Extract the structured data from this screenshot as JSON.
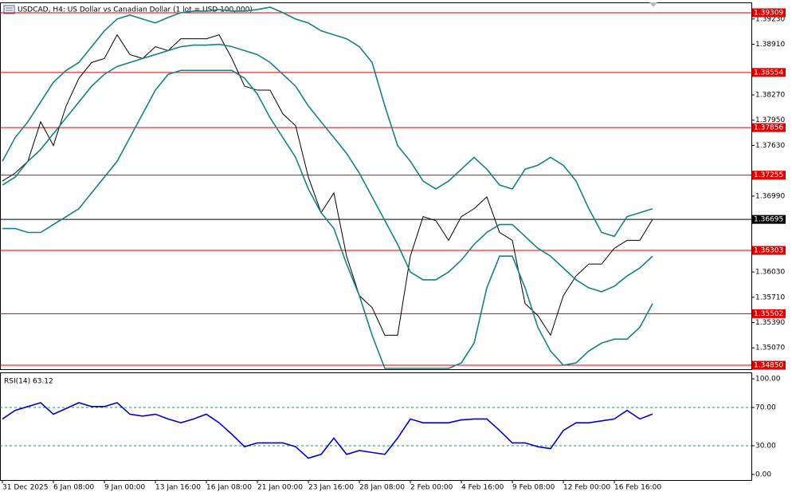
{
  "chart_data": [
    {
      "type": "line",
      "title": "USDCAD, H4:  US Dollar vs Canadian Dollar (1 lot = USD 100,000)",
      "ylim": [
        1.348,
        1.3943
      ],
      "yticks": [
        {
          "value": 1.3923,
          "label": "1.39230"
        },
        {
          "value": 1.3891,
          "label": "1.38910"
        },
        {
          "value": 1.3827,
          "label": "1.38270"
        },
        {
          "value": 1.3795,
          "label": "1.37950"
        },
        {
          "value": 1.3763,
          "label": "1.37630"
        },
        {
          "value": 1.3699,
          "label": "1.36990"
        },
        {
          "value": 1.3603,
          "label": "1.36030"
        },
        {
          "value": 1.3571,
          "label": "1.35710"
        },
        {
          "value": 1.3539,
          "label": "1.35390"
        },
        {
          "value": 1.3507,
          "label": "1.35070"
        }
      ],
      "levels": [
        1.39309,
        1.38554,
        1.37856,
        1.37255,
        1.36303,
        1.35502,
        {
          "value": 1.3485,
          "label": "1.34850"
        }
      ],
      "level_color": "#e00000",
      "current_price": 1.36695,
      "series": [
        {
          "color": "#000000",
          "values": [
            1.3718,
            1.3728,
            1.3743,
            1.3793,
            1.3763,
            1.3813,
            1.3848,
            1.3868,
            1.3873,
            1.3903,
            1.3878,
            1.3873,
            1.3888,
            1.3883,
            1.3898,
            1.3898,
            1.3898,
            1.3903,
            1.3873,
            1.3838,
            1.3833,
            1.3833,
            1.3803,
            1.3788,
            1.3723,
            1.3678,
            1.3703,
            1.3623,
            1.3573,
            1.3558,
            1.3523,
            1.3523,
            1.3623,
            1.3673,
            1.3668,
            1.3643,
            1.3673,
            1.3683,
            1.3698,
            1.3653,
            1.3643,
            1.3563,
            1.3548,
            1.3523,
            1.3573,
            1.3598,
            1.3613,
            1.3613,
            1.3633,
            1.3643,
            1.3643,
            1.36695
          ]
        },
        {
          "color": "#148282",
          "values": [
            1.3743,
            1.3773,
            1.3793,
            1.3818,
            1.3843,
            1.3858,
            1.3868,
            1.3888,
            1.3908,
            1.3923,
            1.3928,
            1.3923,
            1.3918,
            1.3925,
            1.3931,
            1.3933,
            1.3933,
            1.3935,
            1.3933,
            1.3933,
            1.3935,
            1.3938,
            1.3931,
            1.3923,
            1.3918,
            1.3908,
            1.3903,
            1.3898,
            1.3888,
            1.3868,
            1.3813,
            1.3763,
            1.3743,
            1.3718,
            1.3708,
            1.3718,
            1.3733,
            1.3748,
            1.3733,
            1.3713,
            1.3708,
            1.3733,
            1.3738,
            1.3748,
            1.3738,
            1.3718,
            1.3683,
            1.3653,
            1.3648,
            1.3673,
            1.3678,
            1.3683
          ]
        },
        {
          "color": "#148282",
          "values": [
            1.3713,
            1.3723,
            1.3743,
            1.3758,
            1.3778,
            1.3798,
            1.3818,
            1.3838,
            1.3853,
            1.3863,
            1.3868,
            1.3873,
            1.3878,
            1.3883,
            1.3888,
            1.389,
            1.389,
            1.3891,
            1.3888,
            1.3883,
            1.3878,
            1.3868,
            1.3853,
            1.3838,
            1.3813,
            1.3793,
            1.3773,
            1.3753,
            1.3728,
            1.3698,
            1.3668,
            1.3638,
            1.3603,
            1.3593,
            1.3593,
            1.3603,
            1.3618,
            1.3638,
            1.3653,
            1.3663,
            1.3663,
            1.3648,
            1.3633,
            1.3623,
            1.3608,
            1.3593,
            1.3583,
            1.3578,
            1.3585,
            1.3598,
            1.3608,
            1.3623
          ]
        },
        {
          "color": "#148282",
          "values": [
            1.3658,
            1.3658,
            1.3653,
            1.3653,
            1.3663,
            1.3673,
            1.3683,
            1.3703,
            1.3723,
            1.3743,
            1.3773,
            1.3803,
            1.3833,
            1.3853,
            1.3858,
            1.3858,
            1.3858,
            1.3858,
            1.3858,
            1.3848,
            1.3828,
            1.3798,
            1.3773,
            1.3748,
            1.3708,
            1.3678,
            1.3658,
            1.3613,
            1.3573,
            1.3523,
            1.3481,
            1.3481,
            1.3481,
            1.3481,
            1.3481,
            1.3481,
            1.3488,
            1.3513,
            1.3583,
            1.3623,
            1.3623,
            1.3583,
            1.3533,
            1.3503,
            1.3485,
            1.3488,
            1.3503,
            1.3513,
            1.3518,
            1.3518,
            1.3533,
            1.3563
          ]
        }
      ]
    },
    {
      "type": "line",
      "title": "RSI(14) 63.12",
      "ylim": [
        -6.7,
        106.7
      ],
      "yticks": [
        {
          "value": 100,
          "label": "100.00"
        },
        {
          "value": 70,
          "label": "70.00"
        },
        {
          "value": 30,
          "label": "30.00"
        },
        {
          "value": 0,
          "label": "0.00"
        }
      ],
      "levels": [
        70,
        30
      ],
      "level_color": "#2e8b57",
      "categories": [
        "31 Dec 2025",
        null,
        null,
        null,
        "6 Jan 08:00",
        null,
        null,
        null,
        "9 Jan 00:00",
        null,
        null,
        null,
        "13 Jan 16:00",
        null,
        null,
        null,
        "16 Jan 08:00",
        null,
        null,
        null,
        "21 Jan 00:00",
        null,
        null,
        null,
        "23 Jan 16:00",
        null,
        null,
        null,
        "28 Jan 08:00",
        null,
        null,
        null,
        "2 Feb 00:00",
        null,
        null,
        null,
        "4 Feb 16:00",
        null,
        null,
        null,
        "9 Feb 08:00",
        null,
        null,
        null,
        "12 Feb 00:00",
        null,
        null,
        null,
        "16 Feb 16:00",
        null,
        null,
        null
      ],
      "series": [
        {
          "color": "#0000cd",
          "values": [
            58,
            67,
            71,
            75,
            63,
            69,
            75,
            71,
            71,
            75,
            63,
            61,
            63,
            58,
            54,
            58,
            63,
            54,
            42,
            29,
            33,
            33,
            33,
            29,
            17,
            21,
            38,
            21,
            25,
            23,
            21,
            38,
            58,
            54,
            54,
            54,
            57,
            58,
            58,
            46,
            33,
            33,
            29,
            27,
            46,
            54,
            54,
            56,
            58,
            67,
            58,
            63.12
          ]
        }
      ]
    }
  ]
}
